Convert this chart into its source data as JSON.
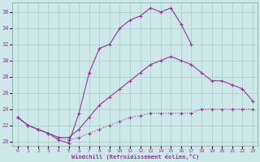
{
  "xlabel": "Windchill (Refroidissement éolien,°C)",
  "background_color": "#cce8e8",
  "line_color": "#993399",
  "grid_color": "#aad4d4",
  "xlim": [
    -0.5,
    23.5
  ],
  "ylim": [
    19.5,
    37.2
  ],
  "xticks": [
    0,
    1,
    2,
    3,
    4,
    5,
    6,
    7,
    8,
    9,
    10,
    11,
    12,
    13,
    14,
    15,
    16,
    17,
    18,
    19,
    20,
    21,
    22,
    23
  ],
  "yticks": [
    20,
    22,
    24,
    26,
    28,
    30,
    32,
    34,
    36
  ],
  "line1_x": [
    0,
    1,
    2,
    3,
    4,
    5,
    6,
    7,
    8,
    9,
    10,
    11,
    12,
    13,
    14,
    15,
    16,
    17,
    18,
    19,
    20,
    21,
    22,
    23
  ],
  "line1_y": [
    23,
    22,
    21.5,
    21,
    20.5,
    20.2,
    20.5,
    21,
    21.5,
    22,
    22.5,
    23,
    23.2,
    23.5,
    23.5,
    23.5,
    23.5,
    23.5,
    24,
    24,
    24,
    24,
    24,
    24
  ],
  "line2_x": [
    0,
    1,
    2,
    3,
    4,
    5,
    6,
    7,
    8,
    9,
    10,
    11,
    12,
    13,
    14,
    15,
    16,
    17,
    18,
    19,
    20,
    21,
    22,
    23
  ],
  "line2_y": [
    23,
    22,
    21.5,
    21,
    20.5,
    20.5,
    21.5,
    23,
    24.5,
    25.5,
    26.5,
    27.5,
    28.5,
    29.5,
    30,
    30.5,
    30,
    29.5,
    28.5,
    27.5,
    27.5,
    27,
    26.5,
    25
  ],
  "line3_x": [
    0,
    1,
    2,
    3,
    4,
    5,
    6,
    7,
    8,
    9,
    10,
    11,
    12,
    13,
    14,
    15,
    16,
    17,
    18,
    19,
    20,
    21,
    22,
    23
  ],
  "line3_y": [
    23,
    22,
    21.5,
    21,
    20.2,
    19.8,
    23.5,
    28.5,
    31.5,
    32,
    34,
    35,
    35.5,
    36.5,
    36,
    36.5,
    34.5,
    32,
    null,
    null,
    null,
    null,
    null,
    null
  ]
}
